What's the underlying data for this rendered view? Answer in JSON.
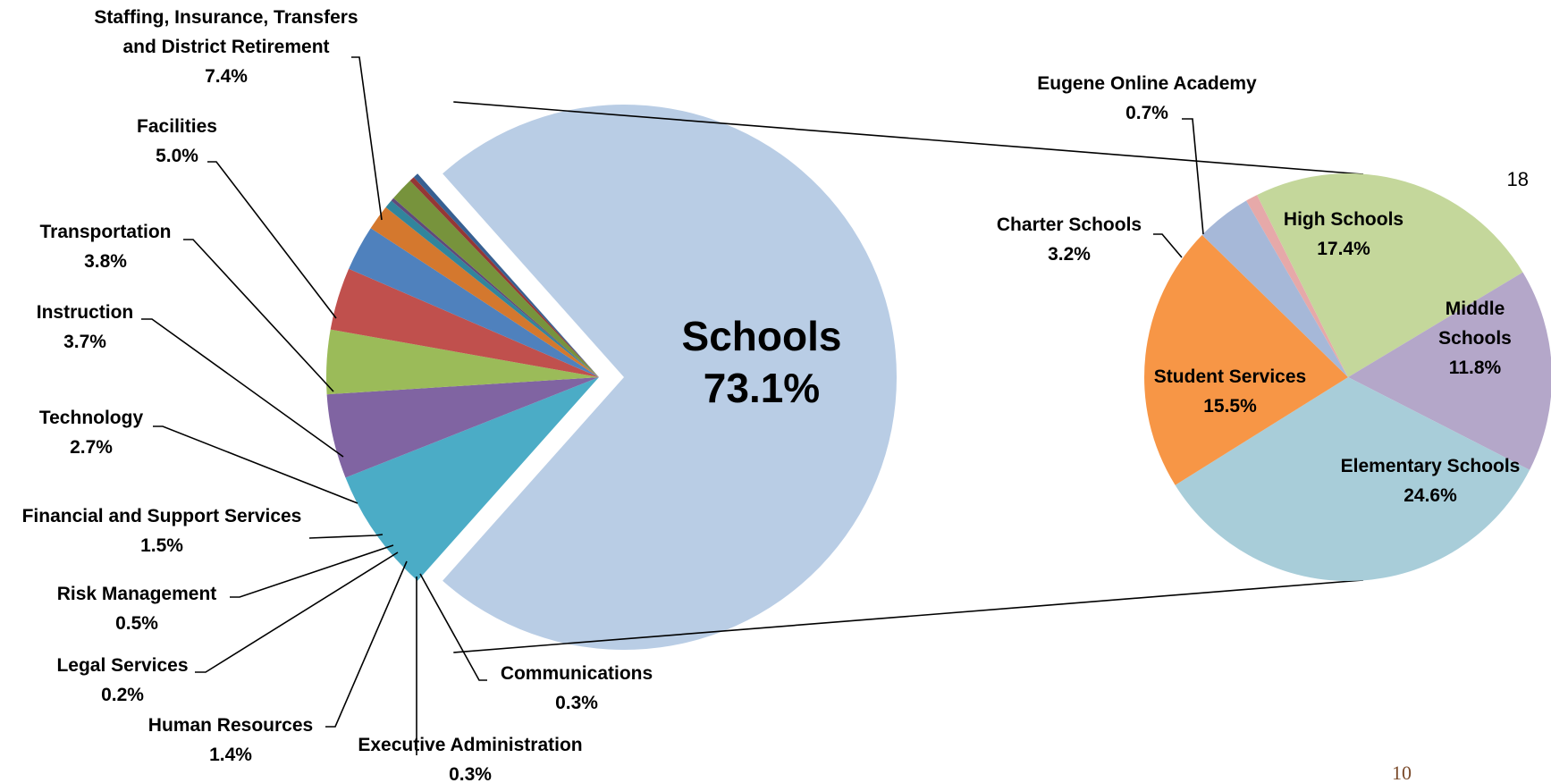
{
  "chart_data": [
    {
      "type": "pie",
      "slices": [
        {
          "label": "Schools",
          "value": 73.1,
          "value_label": "73.1%",
          "color": "#b9cde5",
          "exploded": true
        },
        {
          "label": "Staffing, Insurance, Transfers and District Retirement",
          "value": 7.4,
          "value_label": "7.4%",
          "color": "#4bacc6"
        },
        {
          "label": "Facilities",
          "value": 5.0,
          "value_label": "5.0%",
          "color": "#8064a2"
        },
        {
          "label": "Transportation",
          "value": 3.8,
          "value_label": "3.8%",
          "color": "#9bbb59"
        },
        {
          "label": "Instruction",
          "value": 3.7,
          "value_label": "3.7%",
          "color": "#c0504d"
        },
        {
          "label": "Technology",
          "value": 2.7,
          "value_label": "2.7%",
          "color": "#4f81bd"
        },
        {
          "label": "Financial and Support Services",
          "value": 1.5,
          "value_label": "1.5%",
          "color": "#d4782e"
        },
        {
          "label": "Risk Management",
          "value": 0.5,
          "value_label": "0.5%",
          "color": "#31859c"
        },
        {
          "label": "Legal Services",
          "value": 0.2,
          "value_label": "0.2%",
          "color": "#604a7b"
        },
        {
          "label": "Human Resources",
          "value": 1.4,
          "value_label": "1.4%",
          "color": "#77933c"
        },
        {
          "label": "Executive Administration",
          "value": 0.3,
          "value_label": "0.3%",
          "color": "#953735"
        },
        {
          "label": "Communications",
          "value": 0.3,
          "value_label": "0.3%",
          "color": "#376092"
        }
      ]
    },
    {
      "type": "pie",
      "breakdown_of": "Schools",
      "slices": [
        {
          "label": "Eugene Online Academy",
          "value": 0.7,
          "value_label": "0.7%",
          "color": "#e6a9a9"
        },
        {
          "label": "High Schools",
          "value": 17.4,
          "value_label": "17.4%",
          "color": "#c4d79b"
        },
        {
          "label": "Middle Schools",
          "value": 11.8,
          "value_label": "11.8%",
          "color": "#b4a7c9"
        },
        {
          "label": "Elementary Schools",
          "value": 24.6,
          "value_label": "24.6%",
          "color": "#a8cdd9"
        },
        {
          "label": "Student Services",
          "value": 15.5,
          "value_label": "15.5%",
          "color": "#f79646"
        },
        {
          "label": "Charter Schools",
          "value": 3.2,
          "value_label": "3.2%",
          "color": "#a6b8d8"
        }
      ]
    }
  ],
  "page_numbers": {
    "corner": "18",
    "footer": "10"
  }
}
